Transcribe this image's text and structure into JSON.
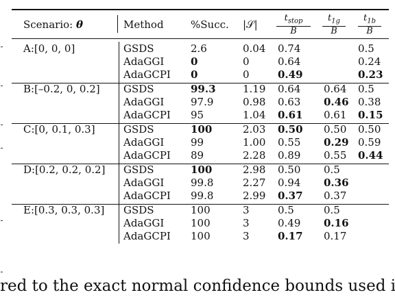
{
  "header": {
    "scenario": "Scenario: ",
    "theta": "θ",
    "method": "Method",
    "succ": "%Succ.",
    "s": "|𝒮|",
    "t_stop_num": "t",
    "t_stop_sub": "stop",
    "t_1g_num": "t",
    "t_1g_sub": "1g",
    "t_1b_num": "t",
    "t_1b_sub": "1b",
    "den": "B"
  },
  "groups": [
    {
      "scenario": "A:[0, 0, 0]",
      "rows": [
        {
          "method": "GSDS",
          "succ": "2.6",
          "s": "0.04",
          "tstop": "0.74",
          "t1g": "",
          "t1b": "0.5"
        },
        {
          "method": "AdaGGI",
          "succ": "0",
          "s": "0",
          "tstop": "0.64",
          "t1g": "",
          "t1b": "0.24"
        },
        {
          "method": "AdaGCPI",
          "succ": "0",
          "s": "0",
          "tstop": "0.49",
          "t1g": "",
          "t1b": "0.23"
        }
      ]
    },
    {
      "scenario": "B:[–0.2, 0, 0.2]",
      "rows": [
        {
          "method": "GSDS",
          "succ": "99.3",
          "s": "1.19",
          "tstop": "0.64",
          "t1g": "0.64",
          "t1b": "0.5"
        },
        {
          "method": "AdaGGI",
          "succ": "97.9",
          "s": "0.98",
          "tstop": "0.63",
          "t1g": "0.46",
          "t1b": "0.38"
        },
        {
          "method": "AdaGCPI",
          "succ": "95",
          "s": "1.04",
          "tstop": "0.61",
          "t1g": "0.61",
          "t1b": "0.15"
        }
      ]
    },
    {
      "scenario": "C:[0, 0.1, 0.3]",
      "rows": [
        {
          "method": "GSDS",
          "succ": "100",
          "s": "2.03",
          "tstop": "0.50",
          "t1g": "0.50",
          "t1b": "0.50"
        },
        {
          "method": "AdaGGI",
          "succ": "99",
          "s": "1.00",
          "tstop": "0.55",
          "t1g": "0.29",
          "t1b": "0.59"
        },
        {
          "method": "AdaGCPI",
          "succ": "89",
          "s": "2.28",
          "tstop": "0.89",
          "t1g": "0.55",
          "t1b": "0.44"
        }
      ]
    },
    {
      "scenario": "D:[0.2, 0.2, 0.2]",
      "rows": [
        {
          "method": "GSDS",
          "succ": "100",
          "s": "2.98",
          "tstop": "0.50",
          "t1g": "0.5",
          "t1b": ""
        },
        {
          "method": "AdaGGI",
          "succ": "99.8",
          "s": "2.27",
          "tstop": "0.94",
          "t1g": "0.36",
          "t1b": ""
        },
        {
          "method": "AdaGCPI",
          "succ": "99.8",
          "s": "2.99",
          "tstop": "0.37",
          "t1g": "0.37",
          "t1b": ""
        }
      ]
    },
    {
      "scenario": "E:[0.3, 0.3, 0.3]",
      "rows": [
        {
          "method": "GSDS",
          "succ": "100",
          "s": "3",
          "tstop": "0.5",
          "t1g": "0.5",
          "t1b": ""
        },
        {
          "method": "AdaGGI",
          "succ": "100",
          "s": "3",
          "tstop": "0.49",
          "t1g": "0.16",
          "t1b": ""
        },
        {
          "method": "AdaGCPI",
          "succ": "100",
          "s": "3",
          "tstop": "0.17",
          "t1g": "0.17",
          "t1b": ""
        }
      ]
    }
  ],
  "bold_cells": [
    "0.1.succ",
    "0.2.succ",
    "0.2.tstop",
    "0.2.t1b",
    "1.0.succ",
    "1.1.t1g",
    "1.2.tstop",
    "1.2.t1b",
    "2.0.succ",
    "2.0.tstop",
    "2.1.t1g",
    "2.2.t1b",
    "3.0.succ",
    "3.1.t1g",
    "3.2.tstop",
    "4.1.t1g",
    "4.2.tstop"
  ],
  "caption": "red to the exact normal confidence bounds used in"
}
